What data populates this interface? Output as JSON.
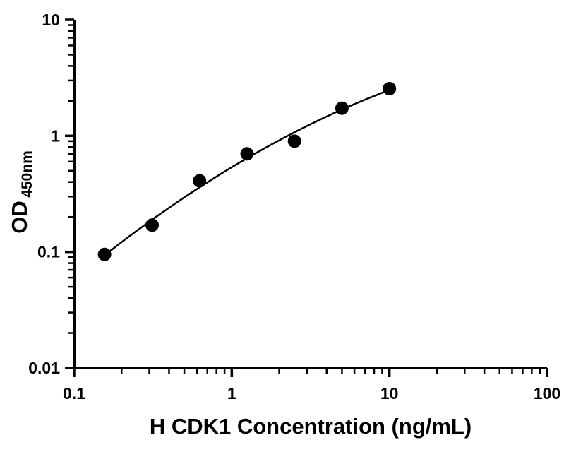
{
  "chart_data": {
    "type": "scatter",
    "title": "",
    "xlabel": "H CDK1 Concentration (ng/mL)",
    "ylabel_main": "OD",
    "ylabel_sub": "450nm",
    "x_scale": "log",
    "y_scale": "log",
    "xlim": [
      0.1,
      100
    ],
    "ylim": [
      0.01,
      10
    ],
    "x_ticks": [
      "0.1",
      "1",
      "10",
      "100"
    ],
    "y_ticks": [
      "0.01",
      "0.1",
      "1",
      "10"
    ],
    "grid": false,
    "legend": "none",
    "marker_shape": "filled-circle",
    "marker_color": "#000000",
    "line_color": "#000000",
    "axis_color": "#000000",
    "background_color": "#ffffff",
    "fit_type": "smooth-curve-loglog",
    "points": [
      {
        "x": 0.156,
        "y": 0.095
      },
      {
        "x": 0.3125,
        "y": 0.17
      },
      {
        "x": 0.625,
        "y": 0.41
      },
      {
        "x": 1.25,
        "y": 0.7
      },
      {
        "x": 2.5,
        "y": 0.9
      },
      {
        "x": 5.0,
        "y": 1.73
      },
      {
        "x": 10.0,
        "y": 2.55
      }
    ]
  }
}
